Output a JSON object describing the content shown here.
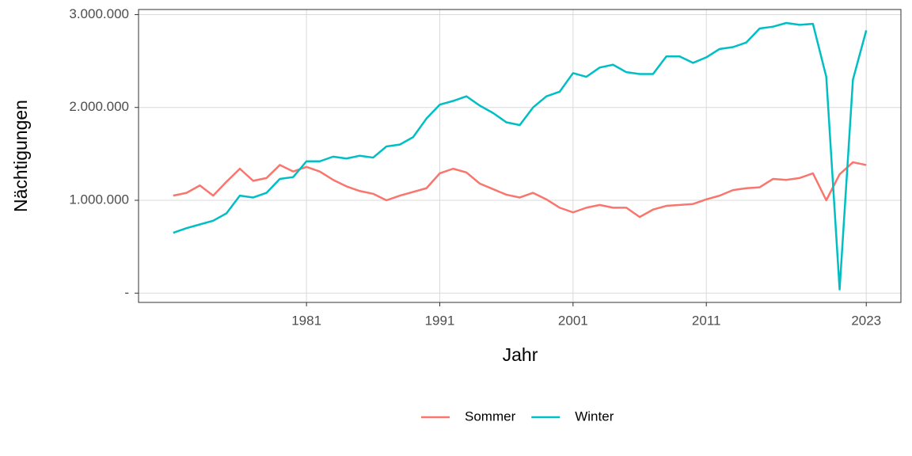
{
  "chart_data": {
    "type": "line",
    "x_label": "Jahr",
    "y_label": "Nächtigungen",
    "x": [
      1971,
      1972,
      1973,
      1974,
      1975,
      1976,
      1977,
      1978,
      1979,
      1980,
      1981,
      1982,
      1983,
      1984,
      1985,
      1986,
      1987,
      1988,
      1989,
      1990,
      1991,
      1992,
      1993,
      1994,
      1995,
      1996,
      1997,
      1998,
      1999,
      2000,
      2001,
      2002,
      2003,
      2004,
      2005,
      2006,
      2007,
      2008,
      2009,
      2010,
      2011,
      2012,
      2013,
      2014,
      2015,
      2016,
      2017,
      2018,
      2019,
      2020,
      2021,
      2022,
      2023
    ],
    "series": [
      {
        "name": "Sommer",
        "color": "#f8766d",
        "values": [
          1050000,
          1080000,
          1160000,
          1050000,
          1200000,
          1340000,
          1210000,
          1240000,
          1380000,
          1310000,
          1360000,
          1310000,
          1220000,
          1150000,
          1100000,
          1070000,
          1000000,
          1050000,
          1090000,
          1130000,
          1290000,
          1340000,
          1300000,
          1180000,
          1120000,
          1060000,
          1030000,
          1080000,
          1010000,
          920000,
          870000,
          920000,
          950000,
          920000,
          920000,
          820000,
          900000,
          940000,
          950000,
          960000,
          1010000,
          1050000,
          1110000,
          1130000,
          1140000,
          1230000,
          1220000,
          1240000,
          1290000,
          1000000,
          1280000,
          1410000,
          1380000
        ]
      },
      {
        "name": "Winter",
        "color": "#00bfc4",
        "values": [
          650000,
          700000,
          740000,
          780000,
          860000,
          1050000,
          1030000,
          1080000,
          1230000,
          1250000,
          1420000,
          1420000,
          1470000,
          1450000,
          1480000,
          1460000,
          1580000,
          1600000,
          1680000,
          1880000,
          2030000,
          2070000,
          2120000,
          2020000,
          1940000,
          1840000,
          1810000,
          2000000,
          2120000,
          2170000,
          2370000,
          2330000,
          2430000,
          2460000,
          2380000,
          2360000,
          2360000,
          2550000,
          2550000,
          2480000,
          2540000,
          2630000,
          2650000,
          2700000,
          2850000,
          2870000,
          2910000,
          2890000,
          2900000,
          2330000,
          40000,
          2300000,
          2830000
        ]
      }
    ],
    "xlim": [
      1968.4,
      2025.6
    ],
    "xticks": [
      1981,
      1991,
      2001,
      2011,
      2023
    ],
    "ylim": [
      -100000,
      3055000
    ],
    "yticks": [
      {
        "value": 0,
        "label": "-"
      },
      {
        "value": 1000000,
        "label": "1.000.000"
      },
      {
        "value": 2000000,
        "label": "2.000.000"
      },
      {
        "value": 3000000,
        "label": "3.000.000"
      }
    ],
    "grid": true,
    "legend": "bottom"
  }
}
